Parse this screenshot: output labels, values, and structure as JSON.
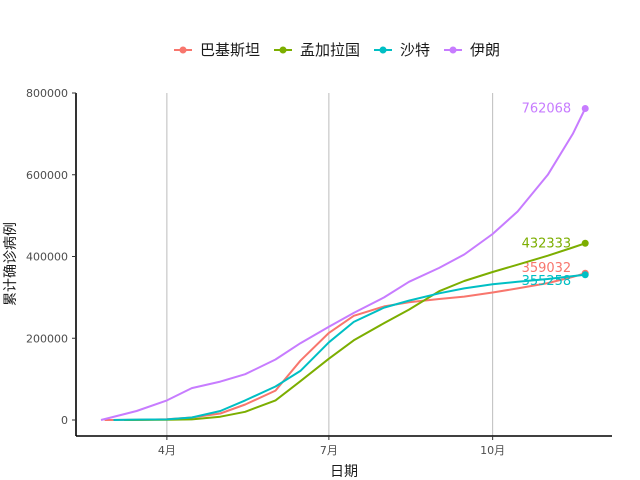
{
  "chart_data": {
    "type": "line",
    "xlabel": "日期",
    "ylabel": "累计确诊病例",
    "ylim": [
      0,
      800000
    ],
    "xlim": [
      "2020-02-24",
      "2020-11-23"
    ],
    "y_ticks": [
      0,
      200000,
      400000,
      600000,
      800000
    ],
    "x_ticks": [
      {
        "date": "2020-04-01",
        "label": "4月"
      },
      {
        "date": "2020-07-01",
        "label": "7月"
      },
      {
        "date": "2020-10-01",
        "label": "10月"
      }
    ],
    "grid": "vertical-major",
    "legend_position": "top",
    "series": [
      {
        "name": "巴基斯坦",
        "color": "#F8766D",
        "end_label": "359032",
        "points": [
          [
            "2020-02-26",
            0
          ],
          [
            "2020-03-15",
            200
          ],
          [
            "2020-04-01",
            2000
          ],
          [
            "2020-04-15",
            6000
          ],
          [
            "2020-05-01",
            16000
          ],
          [
            "2020-05-15",
            38000
          ],
          [
            "2020-06-01",
            72000
          ],
          [
            "2020-06-15",
            145000
          ],
          [
            "2020-07-01",
            213000
          ],
          [
            "2020-07-15",
            255000
          ],
          [
            "2020-08-01",
            278000
          ],
          [
            "2020-08-15",
            288000
          ],
          [
            "2020-09-01",
            296000
          ],
          [
            "2020-09-15",
            302000
          ],
          [
            "2020-10-01",
            312000
          ],
          [
            "2020-10-15",
            322000
          ],
          [
            "2020-11-01",
            335000
          ],
          [
            "2020-11-15",
            350000
          ],
          [
            "2020-11-22",
            359032
          ]
        ]
      },
      {
        "name": "孟加拉国",
        "color": "#7CAE00",
        "end_label": "432333",
        "points": [
          [
            "2020-03-08",
            0
          ],
          [
            "2020-04-01",
            500
          ],
          [
            "2020-04-15",
            1500
          ],
          [
            "2020-05-01",
            8000
          ],
          [
            "2020-05-15",
            20000
          ],
          [
            "2020-06-01",
            48000
          ],
          [
            "2020-06-15",
            95000
          ],
          [
            "2020-07-01",
            150000
          ],
          [
            "2020-07-15",
            195000
          ],
          [
            "2020-08-01",
            237000
          ],
          [
            "2020-08-15",
            270000
          ],
          [
            "2020-09-01",
            315000
          ],
          [
            "2020-09-15",
            340000
          ],
          [
            "2020-10-01",
            362000
          ],
          [
            "2020-10-15",
            380000
          ],
          [
            "2020-11-01",
            402000
          ],
          [
            "2020-11-15",
            422000
          ],
          [
            "2020-11-22",
            432333
          ]
        ]
      },
      {
        "name": "沙特",
        "color": "#00BFC4",
        "end_label": "355258",
        "points": [
          [
            "2020-03-02",
            0
          ],
          [
            "2020-03-15",
            1000
          ],
          [
            "2020-04-01",
            1500
          ],
          [
            "2020-04-15",
            6000
          ],
          [
            "2020-05-01",
            22000
          ],
          [
            "2020-05-15",
            48000
          ],
          [
            "2020-06-01",
            82000
          ],
          [
            "2020-06-15",
            120000
          ],
          [
            "2020-07-01",
            190000
          ],
          [
            "2020-07-15",
            240000
          ],
          [
            "2020-08-01",
            275000
          ],
          [
            "2020-08-15",
            292000
          ],
          [
            "2020-09-01",
            310000
          ],
          [
            "2020-09-15",
            322000
          ],
          [
            "2020-10-01",
            332000
          ],
          [
            "2020-10-15",
            338000
          ],
          [
            "2020-11-01",
            345000
          ],
          [
            "2020-11-15",
            352000
          ],
          [
            "2020-11-22",
            355258
          ]
        ]
      },
      {
        "name": "伊朗",
        "color": "#C77CFF",
        "end_label": "762068",
        "points": [
          [
            "2020-02-24",
            0
          ],
          [
            "2020-03-15",
            22000
          ],
          [
            "2020-04-01",
            48000
          ],
          [
            "2020-04-15",
            78000
          ],
          [
            "2020-05-01",
            94000
          ],
          [
            "2020-05-15",
            112000
          ],
          [
            "2020-06-01",
            148000
          ],
          [
            "2020-06-15",
            188000
          ],
          [
            "2020-07-01",
            228000
          ],
          [
            "2020-07-15",
            262000
          ],
          [
            "2020-08-01",
            300000
          ],
          [
            "2020-08-15",
            338000
          ],
          [
            "2020-09-01",
            372000
          ],
          [
            "2020-09-15",
            405000
          ],
          [
            "2020-10-01",
            455000
          ],
          [
            "2020-10-15",
            510000
          ],
          [
            "2020-11-01",
            600000
          ],
          [
            "2020-11-15",
            700000
          ],
          [
            "2020-11-22",
            762068
          ]
        ]
      }
    ]
  }
}
